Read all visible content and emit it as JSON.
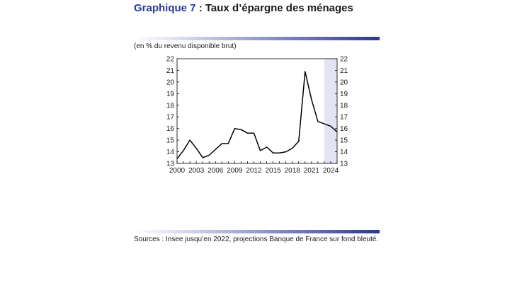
{
  "header": {
    "title_prefix": "Graphique 7",
    "title_separator": " : ",
    "title_text": "Taux d’épargne des ménages"
  },
  "unit_note": "(en % du revenu disponible brut)",
  "source_note": "Sources : Insee jusqu’en 2022, projections Banque de France sur fond bleuté.",
  "colors": {
    "accent": "#2b3990",
    "projection_shade": "#e3e4f3",
    "line": "#000000"
  },
  "chart_data": {
    "type": "line",
    "title": "",
    "xlabel": "",
    "ylabel": "",
    "xlim": [
      2000,
      2025
    ],
    "ylim": [
      13,
      22
    ],
    "x_ticks": [
      2000,
      2003,
      2006,
      2009,
      2012,
      2015,
      2018,
      2021,
      2024
    ],
    "y_ticks": [
      13,
      14,
      15,
      16,
      17,
      18,
      19,
      20,
      21,
      22
    ],
    "dual_y_axis": true,
    "grid": false,
    "projection_range": [
      2023,
      2025
    ],
    "series": [
      {
        "name": "",
        "x": [
          2000,
          2001,
          2002,
          2003,
          2004,
          2005,
          2006,
          2007,
          2008,
          2009,
          2010,
          2011,
          2012,
          2013,
          2014,
          2015,
          2016,
          2017,
          2018,
          2019,
          2020,
          2021,
          2022,
          2023,
          2024,
          2025
        ],
        "values": [
          13.4,
          14.1,
          15.0,
          14.3,
          13.5,
          13.7,
          14.2,
          14.7,
          14.7,
          16.0,
          15.9,
          15.6,
          15.6,
          14.1,
          14.4,
          13.9,
          13.9,
          14.0,
          14.3,
          14.9,
          20.9,
          18.5,
          16.6,
          16.4,
          16.2,
          15.7
        ]
      }
    ]
  }
}
